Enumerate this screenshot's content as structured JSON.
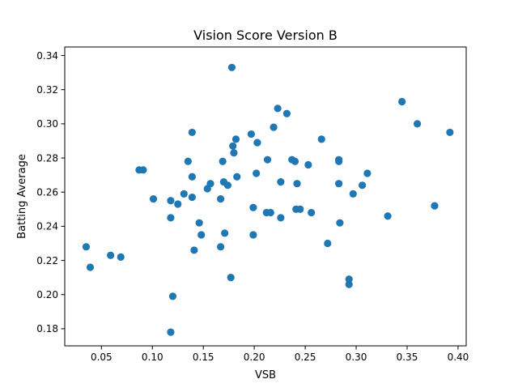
{
  "chart_data": {
    "type": "scatter",
    "title": "Vision Score Version B",
    "xlabel": "VSB",
    "ylabel": "Batting Average",
    "xlim": [
      0.014,
      0.408
    ],
    "ylim": [
      0.17,
      0.345
    ],
    "xticks": [
      0.05,
      0.1,
      0.15,
      0.2,
      0.25,
      0.3,
      0.35,
      0.4
    ],
    "xtick_labels": [
      "0.05",
      "0.10",
      "0.15",
      "0.20",
      "0.25",
      "0.30",
      "0.35",
      "0.40"
    ],
    "yticks": [
      0.18,
      0.2,
      0.22,
      0.24,
      0.26,
      0.28,
      0.3,
      0.32,
      0.34
    ],
    "ytick_labels": [
      "0.18",
      "0.20",
      "0.22",
      "0.24",
      "0.26",
      "0.28",
      "0.30",
      "0.32",
      "0.34"
    ],
    "grid": false,
    "marker_color": "#1f77b4",
    "points": [
      [
        0.035,
        0.228
      ],
      [
        0.039,
        0.216
      ],
      [
        0.059,
        0.223
      ],
      [
        0.069,
        0.222
      ],
      [
        0.087,
        0.273
      ],
      [
        0.091,
        0.273
      ],
      [
        0.101,
        0.256
      ],
      [
        0.118,
        0.255
      ],
      [
        0.118,
        0.245
      ],
      [
        0.12,
        0.199
      ],
      [
        0.118,
        0.178
      ],
      [
        0.125,
        0.253
      ],
      [
        0.131,
        0.259
      ],
      [
        0.135,
        0.278
      ],
      [
        0.139,
        0.295
      ],
      [
        0.139,
        0.269
      ],
      [
        0.139,
        0.257
      ],
      [
        0.141,
        0.226
      ],
      [
        0.146,
        0.242
      ],
      [
        0.148,
        0.235
      ],
      [
        0.154,
        0.262
      ],
      [
        0.157,
        0.265
      ],
      [
        0.167,
        0.256
      ],
      [
        0.167,
        0.228
      ],
      [
        0.169,
        0.278
      ],
      [
        0.17,
        0.266
      ],
      [
        0.171,
        0.236
      ],
      [
        0.174,
        0.264
      ],
      [
        0.177,
        0.21
      ],
      [
        0.178,
        0.333
      ],
      [
        0.179,
        0.287
      ],
      [
        0.18,
        0.283
      ],
      [
        0.182,
        0.291
      ],
      [
        0.183,
        0.269
      ],
      [
        0.197,
        0.294
      ],
      [
        0.199,
        0.251
      ],
      [
        0.199,
        0.235
      ],
      [
        0.202,
        0.271
      ],
      [
        0.203,
        0.289
      ],
      [
        0.213,
        0.279
      ],
      [
        0.212,
        0.248
      ],
      [
        0.216,
        0.248
      ],
      [
        0.219,
        0.298
      ],
      [
        0.223,
        0.309
      ],
      [
        0.226,
        0.266
      ],
      [
        0.226,
        0.245
      ],
      [
        0.232,
        0.306
      ],
      [
        0.237,
        0.279
      ],
      [
        0.24,
        0.278
      ],
      [
        0.242,
        0.265
      ],
      [
        0.241,
        0.25
      ],
      [
        0.245,
        0.25
      ],
      [
        0.253,
        0.276
      ],
      [
        0.256,
        0.248
      ],
      [
        0.266,
        0.291
      ],
      [
        0.272,
        0.23
      ],
      [
        0.283,
        0.279
      ],
      [
        0.283,
        0.278
      ],
      [
        0.283,
        0.265
      ],
      [
        0.284,
        0.242
      ],
      [
        0.293,
        0.209
      ],
      [
        0.293,
        0.206
      ],
      [
        0.297,
        0.259
      ],
      [
        0.306,
        0.264
      ],
      [
        0.311,
        0.271
      ],
      [
        0.331,
        0.246
      ],
      [
        0.345,
        0.313
      ],
      [
        0.36,
        0.3
      ],
      [
        0.377,
        0.252
      ],
      [
        0.392,
        0.295
      ]
    ]
  }
}
